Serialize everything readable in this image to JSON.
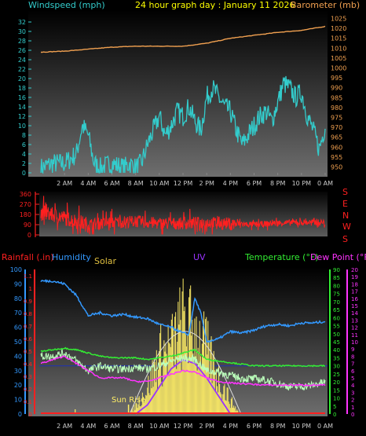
{
  "header": {
    "windspeed_label": "Windspeed (mph)",
    "title": "24 hour graph day : January 11 2026",
    "barometer_label": "Barometer (mb)"
  },
  "colors": {
    "wind": "#33cccc",
    "barometer": "#f0a050",
    "direction": "#ff2020",
    "rain": "#ff2020",
    "humidity": "#3399ff",
    "solar": "#ffee66",
    "uv": "#9933ff",
    "temperature": "#33ee33",
    "dewpoint": "#ff33ff",
    "windchill": "#bbffbb",
    "title": "#ffff00"
  },
  "chart_data": [
    {
      "type": "line",
      "title": "24 hour graph day : January 11 2026",
      "ylabel": "Windspeed (mph)",
      "y2label": "Barometer (mb)",
      "ylim": [
        0,
        34
      ],
      "y2lim": [
        947,
        1028
      ],
      "yticks": [
        0,
        2,
        4,
        6,
        8,
        10,
        12,
        14,
        16,
        18,
        20,
        22,
        24,
        26,
        28,
        30,
        32
      ],
      "y2ticks": [
        950,
        955,
        960,
        965,
        970,
        975,
        980,
        985,
        990,
        995,
        1000,
        1005,
        1010,
        1015,
        1020,
        1025
      ],
      "xticks": [
        "2 AM",
        "4 AM",
        "6 AM",
        "8 AM",
        "10 AM",
        "12 PM",
        "2 PM",
        "4 PM",
        "6 PM",
        "8 PM",
        "10 PM",
        "0 AM"
      ],
      "series": [
        {
          "name": "Windspeed (mph)",
          "axis": "left",
          "x": [
            0,
            1,
            2,
            3,
            3.5,
            4,
            4.5,
            5,
            6,
            7,
            7.5,
            8,
            8.5,
            9,
            9.5,
            10,
            10.5,
            11,
            11.5,
            12,
            12.5,
            13,
            13.5,
            14,
            14.5,
            15,
            15.5,
            16,
            16.5,
            17,
            17.5,
            18,
            18.5,
            19,
            19.5,
            20,
            20.5,
            21,
            21.5,
            22,
            22.5,
            23,
            23.5,
            24
          ],
          "values": [
            1,
            2,
            2,
            4,
            10,
            8,
            2,
            1,
            2,
            1,
            2,
            1,
            2,
            6,
            9,
            12,
            8,
            10,
            13,
            12,
            14,
            11,
            9,
            16,
            18,
            16,
            14,
            13,
            9,
            6,
            8,
            10,
            12,
            13,
            11,
            15,
            19,
            18,
            16,
            17,
            12,
            9,
            5,
            10
          ]
        },
        {
          "name": "Barometer (mb)",
          "axis": "right",
          "x": [
            0,
            2,
            4,
            6,
            8,
            10,
            12,
            14,
            16,
            18,
            20,
            22,
            24
          ],
          "values": [
            1008,
            1008.5,
            1009.5,
            1010.5,
            1011,
            1011,
            1011,
            1012.5,
            1015,
            1016.5,
            1018,
            1019,
            1021
          ]
        }
      ]
    },
    {
      "type": "scatter",
      "ylabel": "Wind direction",
      "ylim": [
        0,
        360
      ],
      "yticks": [
        0,
        90,
        180,
        270,
        360
      ],
      "direction_labels": [
        "S",
        "E",
        "N",
        "W",
        "S"
      ],
      "series": [
        {
          "name": "Wind direction",
          "x": [
            0,
            2,
            4,
            6,
            8,
            10,
            12,
            14,
            16,
            18,
            20,
            22,
            24
          ],
          "values": [
            200,
            150,
            90,
            110,
            120,
            100,
            100,
            110,
            100,
            90,
            105,
            110,
            110
          ]
        }
      ]
    },
    {
      "type": "line",
      "labels": {
        "rain": "Rainfall (.in)",
        "humidity": "Humidity",
        "solar": "Solar",
        "uv": "UV",
        "temperature": "Temperature (°F)",
        "dewpoint": "Dew Point (°F)"
      },
      "annotation": "Sun Rise",
      "y_rain_ticks": [
        0,
        0.1,
        0.2,
        0.3,
        0.4,
        0.5,
        0.6,
        0.7,
        0.8,
        0.9,
        1,
        1.1
      ],
      "y_hum_ticks": [
        0,
        10,
        20,
        30,
        40,
        50,
        60,
        70,
        80,
        90,
        100
      ],
      "y_temp_ticks": [
        0,
        5,
        10,
        15,
        20,
        25,
        30,
        35,
        40,
        45,
        50,
        55,
        60,
        65,
        70,
        75,
        80,
        85,
        90
      ],
      "y_dew_ticks": [
        0,
        1,
        2,
        3,
        4,
        5,
        6,
        7,
        8,
        9,
        10,
        11,
        12,
        13,
        14,
        15,
        16,
        17,
        18,
        19,
        20
      ],
      "ylim_temp": [
        0,
        90
      ],
      "ylim_hum": [
        0,
        100
      ],
      "series": [
        {
          "name": "Humidity",
          "x": [
            0,
            1,
            2,
            3,
            4,
            5,
            6,
            7,
            8,
            9,
            10,
            11,
            12,
            12.5,
            13,
            13.5,
            14,
            15,
            16,
            17,
            18,
            19,
            20,
            21,
            22,
            23,
            24
          ],
          "values": [
            92,
            92,
            90,
            82,
            68,
            70,
            68,
            69,
            67,
            66,
            62,
            60,
            56,
            55,
            80,
            70,
            50,
            52,
            57,
            56,
            58,
            61,
            62,
            61,
            63,
            63,
            64
          ]
        },
        {
          "name": "Temperature (°F)",
          "x": [
            0,
            1,
            2,
            3,
            4,
            5,
            6,
            7,
            8,
            9,
            10,
            11,
            12,
            13,
            14,
            15,
            16,
            17,
            18,
            19,
            20,
            21,
            22,
            23,
            24
          ],
          "values": [
            39,
            40,
            41,
            40,
            38,
            36,
            35,
            35,
            35,
            34,
            35,
            36,
            38,
            40,
            34,
            33,
            32,
            31,
            30,
            30,
            30,
            30,
            30,
            30,
            30
          ]
        },
        {
          "name": "Dew Point (°F)",
          "x": [
            0,
            1,
            2,
            3,
            4,
            5,
            6,
            7,
            8,
            9,
            10,
            11,
            12,
            13,
            14,
            15,
            16,
            17,
            18,
            19,
            20,
            21,
            22,
            23,
            24
          ],
          "values": [
            7,
            7.5,
            8,
            7,
            6,
            5,
            5,
            5,
            4.5,
            4.5,
            5,
            5.5,
            6,
            5.8,
            5,
            4.5,
            4.3,
            4.2,
            4.1,
            4,
            4,
            4,
            4,
            4,
            4
          ]
        },
        {
          "name": "Wind chill",
          "x": [
            0,
            1,
            2,
            3,
            4,
            5,
            6,
            7,
            8,
            9,
            10,
            11,
            12,
            13,
            14,
            15,
            16,
            17,
            18,
            19,
            20,
            21,
            22,
            23,
            24
          ],
          "values": [
            36,
            36,
            38,
            33,
            27,
            30,
            28,
            28,
            29,
            28,
            30,
            33,
            35,
            34,
            27,
            26,
            24,
            22,
            22,
            21,
            19,
            17,
            17,
            18,
            20
          ]
        },
        {
          "name": "Solar",
          "x": [
            7.5,
            8,
            9,
            10,
            11,
            12,
            13,
            14,
            15,
            16,
            16.8
          ],
          "values": [
            0,
            5,
            15,
            35,
            40,
            55,
            50,
            38,
            22,
            8,
            0
          ]
        },
        {
          "name": "UV",
          "x": [
            8,
            9,
            10,
            11,
            12,
            13,
            14,
            15,
            16
          ],
          "values": [
            0,
            0.5,
            1.5,
            2.5,
            3,
            2.8,
            2,
            1,
            0
          ]
        },
        {
          "name": "Rainfall (.in)",
          "x": [
            0,
            24
          ],
          "values": [
            0,
            0
          ]
        }
      ]
    }
  ],
  "panel3": {
    "rain_label": "Rainfall (.in)",
    "humidity_label": "Humidity",
    "solar_label": "Solar",
    "uv_label": "UV",
    "temperature_label": "Temperature (°F)",
    "dewpoint_label": "Dew Point (°F)",
    "sunrise_label": "Sun Rise"
  }
}
